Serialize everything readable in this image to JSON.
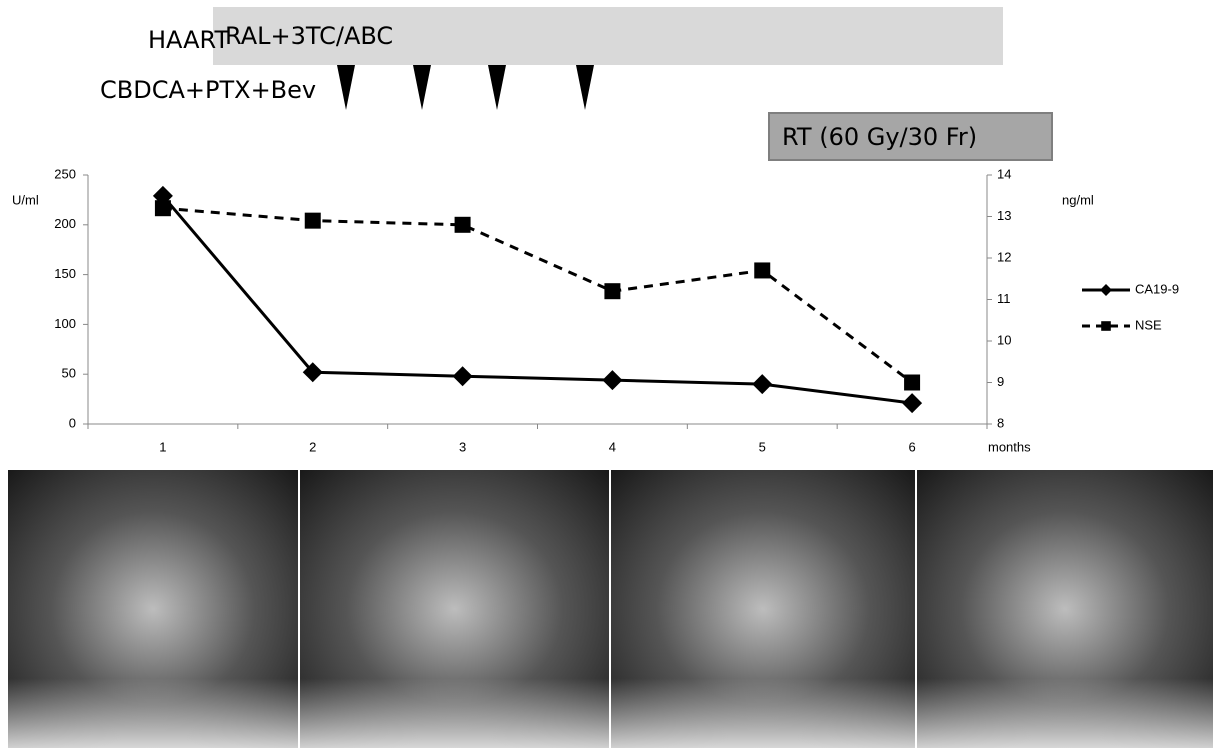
{
  "timeline": {
    "haart_label": "HAART",
    "haart_regimen": "RAL+3TC/ABC",
    "chemo_label": "CBDCA+PTX+Bev",
    "rt_label": "RT (60 Gy/30 Fr)"
  },
  "chart_data": {
    "type": "line",
    "y_label": "U/ml",
    "y2_label": "ng/ml",
    "x_label": "months",
    "categories": [
      "1",
      "2",
      "3",
      "4",
      "5",
      "6"
    ],
    "series": [
      {
        "name": "CA19-9",
        "color": "#000000",
        "marker": "diamond",
        "line_style": "solid",
        "values": [
          229,
          52,
          48,
          44,
          40,
          21
        ]
      },
      {
        "name": "NSE",
        "color": "#000000",
        "marker": "square",
        "line_style": "dashed",
        "axis": "y2",
        "values": [
          13.2,
          12.9,
          12.8,
          11.2,
          11.7,
          9.0
        ]
      }
    ],
    "ylim": [
      0,
      250
    ],
    "yticks": [
      0,
      50,
      100,
      150,
      200,
      250
    ],
    "y2lim": [
      8,
      14
    ],
    "y2ticks": [
      8,
      9,
      10,
      11,
      12,
      13,
      14
    ],
    "legend": "right"
  }
}
